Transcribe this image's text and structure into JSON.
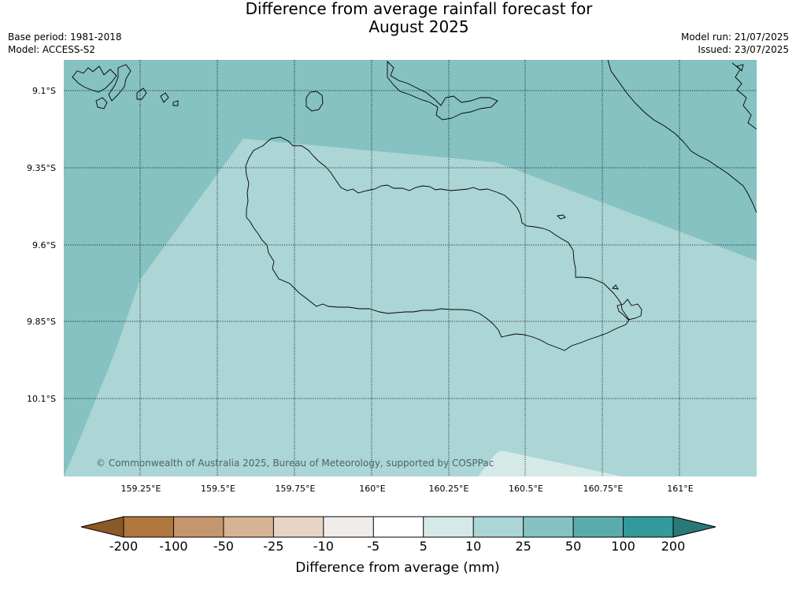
{
  "title": {
    "line1": "Difference from average rainfall forecast for",
    "line2": "August 2025"
  },
  "meta": {
    "base_period": "Base period: 1981-2018",
    "model": "Model: ACCESS-S2",
    "model_run": "Model run: 21/07/2025",
    "issued": "Issued: 23/07/2025"
  },
  "map": {
    "lat_labels": [
      "9.1°S",
      "9.35°S",
      "9.6°S",
      "9.85°S",
      "10.1°S"
    ],
    "lon_labels": [
      "159.25°E",
      "159.5°E",
      "159.75°E",
      "160°E",
      "160.25°E",
      "160.5°E",
      "160.75°E",
      "161°E"
    ],
    "copyright": "© Commonwealth of Australia 2025, Bureau of Meteorology, supported by COSPPac",
    "category_colors": {
      "25_to_50": "#85c2c1",
      "10_to_25": "#acd5d5",
      "5_to_10": "#d6e9e9"
    }
  },
  "legend": {
    "title": "Difference from average (mm)",
    "labels": [
      "-200",
      "-100",
      "-50",
      "-25",
      "-10",
      "-5",
      "5",
      "10",
      "25",
      "50",
      "100",
      "200"
    ],
    "colors": [
      "#8b5828",
      "#b0773f",
      "#c5966d",
      "#d7b395",
      "#e8d4c4",
      "#f0ece9",
      "#ffffff",
      "#d6e9e9",
      "#acd5d5",
      "#85c2c1",
      "#5aacac",
      "#34999a",
      "#2a7878"
    ]
  }
}
